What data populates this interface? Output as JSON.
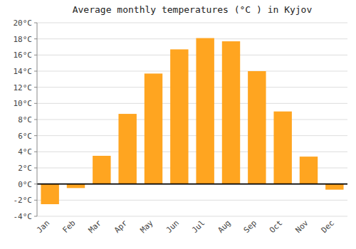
{
  "chart_data": {
    "type": "bar",
    "title": "Average monthly temperatures (°C ) in Kyjov",
    "categories": [
      "Jan",
      "Feb",
      "Mar",
      "Apr",
      "May",
      "Jun",
      "Jul",
      "Aug",
      "Sep",
      "Oct",
      "Nov",
      "Dec"
    ],
    "values": [
      -2.5,
      -0.5,
      3.5,
      8.7,
      13.7,
      16.7,
      18.1,
      17.7,
      14.0,
      9.0,
      3.4,
      -0.7
    ],
    "color": "#FFA520",
    "ylim": [
      -4,
      20
    ],
    "yticks": [
      {
        "value": -4,
        "label": "-4°C"
      },
      {
        "value": -2,
        "label": "-2°C"
      },
      {
        "value": 0,
        "label": "0°C"
      },
      {
        "value": 2,
        "label": "2°C"
      },
      {
        "value": 4,
        "label": "4°C"
      },
      {
        "value": 6,
        "label": "6°C"
      },
      {
        "value": 8,
        "label": "8°C"
      },
      {
        "value": 10,
        "label": "10°C"
      },
      {
        "value": 12,
        "label": "12°C"
      },
      {
        "value": 14,
        "label": "14°C"
      },
      {
        "value": 16,
        "label": "16°C"
      },
      {
        "value": 18,
        "label": "18°C"
      },
      {
        "value": 20,
        "label": "20°C"
      }
    ],
    "grid": true
  }
}
